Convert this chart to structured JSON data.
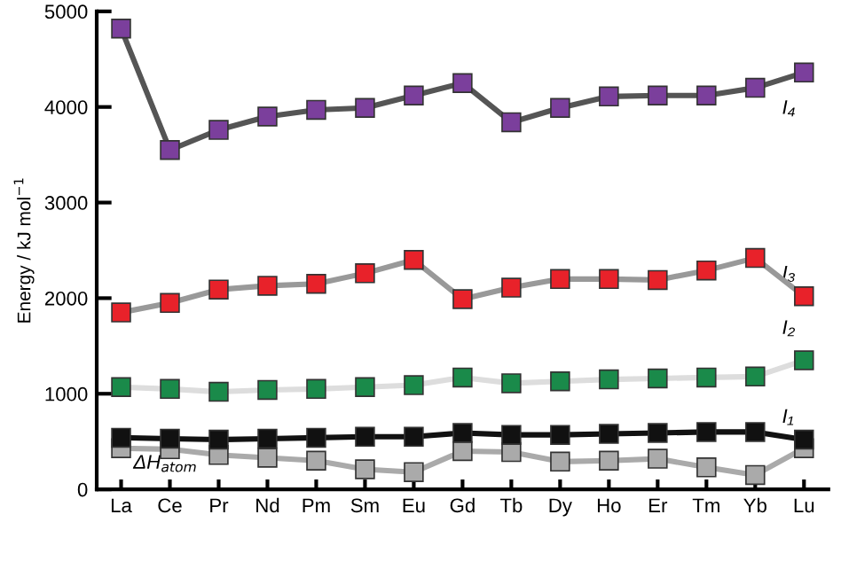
{
  "chart_data": {
    "type": "line",
    "ylabel": "Energy / kJ mol$^{−1}$",
    "categories": [
      "La",
      "Ce",
      "Pr",
      "Nd",
      "Pm",
      "Sm",
      "Eu",
      "Gd",
      "Tb",
      "Dy",
      "Ho",
      "Er",
      "Tm",
      "Yb",
      "Lu"
    ],
    "ylim": [
      0,
      5000
    ],
    "yticks": [
      0,
      1000,
      2000,
      3000,
      4000,
      5000
    ],
    "grid": false,
    "legend": false,
    "marker": "square",
    "line_style": "solid",
    "series": [
      {
        "name": "I₄",
        "color": "#7b3f9c",
        "values": [
          4820,
          3550,
          3760,
          3900,
          3970,
          3990,
          4120,
          4250,
          3840,
          3990,
          4110,
          4120,
          4120,
          4200,
          4360
        ]
      },
      {
        "name": "I₃",
        "color": "#e8222a",
        "values": [
          1850,
          1950,
          2090,
          2130,
          2150,
          2260,
          2400,
          1990,
          2110,
          2200,
          2200,
          2190,
          2290,
          2420,
          2020
        ]
      },
      {
        "name": "I₂",
        "color": "#1a8a4a",
        "values": [
          1070,
          1050,
          1020,
          1040,
          1050,
          1070,
          1090,
          1170,
          1110,
          1130,
          1150,
          1160,
          1170,
          1180,
          1350
        ]
      },
      {
        "name": "I₁",
        "color": "#111111",
        "values": [
          540,
          530,
          520,
          530,
          540,
          550,
          550,
          590,
          570,
          570,
          580,
          590,
          600,
          600,
          520
        ]
      },
      {
        "name": "ΔH$_{atom}$",
        "color": "#aaaaaa",
        "values": [
          430,
          420,
          360,
          330,
          300,
          210,
          180,
          400,
          390,
          290,
          300,
          320,
          230,
          150,
          430
        ]
      }
    ]
  }
}
